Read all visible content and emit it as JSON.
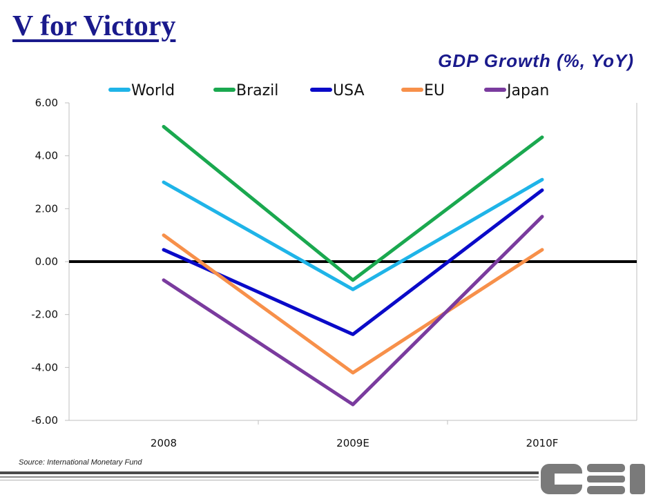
{
  "slide_title": "V for Victory",
  "source_note": "Source: International Monetary Fund",
  "logo_text": "CSI",
  "chart_data": {
    "type": "line",
    "title": "GDP Growth (%, YoY)",
    "xlabel": "",
    "ylabel": "",
    "categories": [
      "2008",
      "2009E",
      "2010F"
    ],
    "ylim": [
      -6,
      6
    ],
    "yticks": [
      "6.00",
      "4.00",
      "2.00",
      "0.00",
      "-2.00",
      "-4.00",
      "-6.00"
    ],
    "grid": false,
    "legend_position": "top",
    "series": [
      {
        "name": "World",
        "color": "#1fb4e8",
        "values": [
          3.0,
          -1.05,
          3.1
        ]
      },
      {
        "name": "Brazil",
        "color": "#1aa84f",
        "values": [
          5.1,
          -0.7,
          4.7
        ]
      },
      {
        "name": "USA",
        "color": "#0a0ac8",
        "values": [
          0.45,
          -2.75,
          2.7
        ]
      },
      {
        "name": "EU",
        "color": "#f7904a",
        "values": [
          1.0,
          -4.2,
          0.45
        ]
      },
      {
        "name": "Japan",
        "color": "#7a3b9e",
        "values": [
          -0.7,
          -5.4,
          1.7
        ]
      }
    ]
  }
}
